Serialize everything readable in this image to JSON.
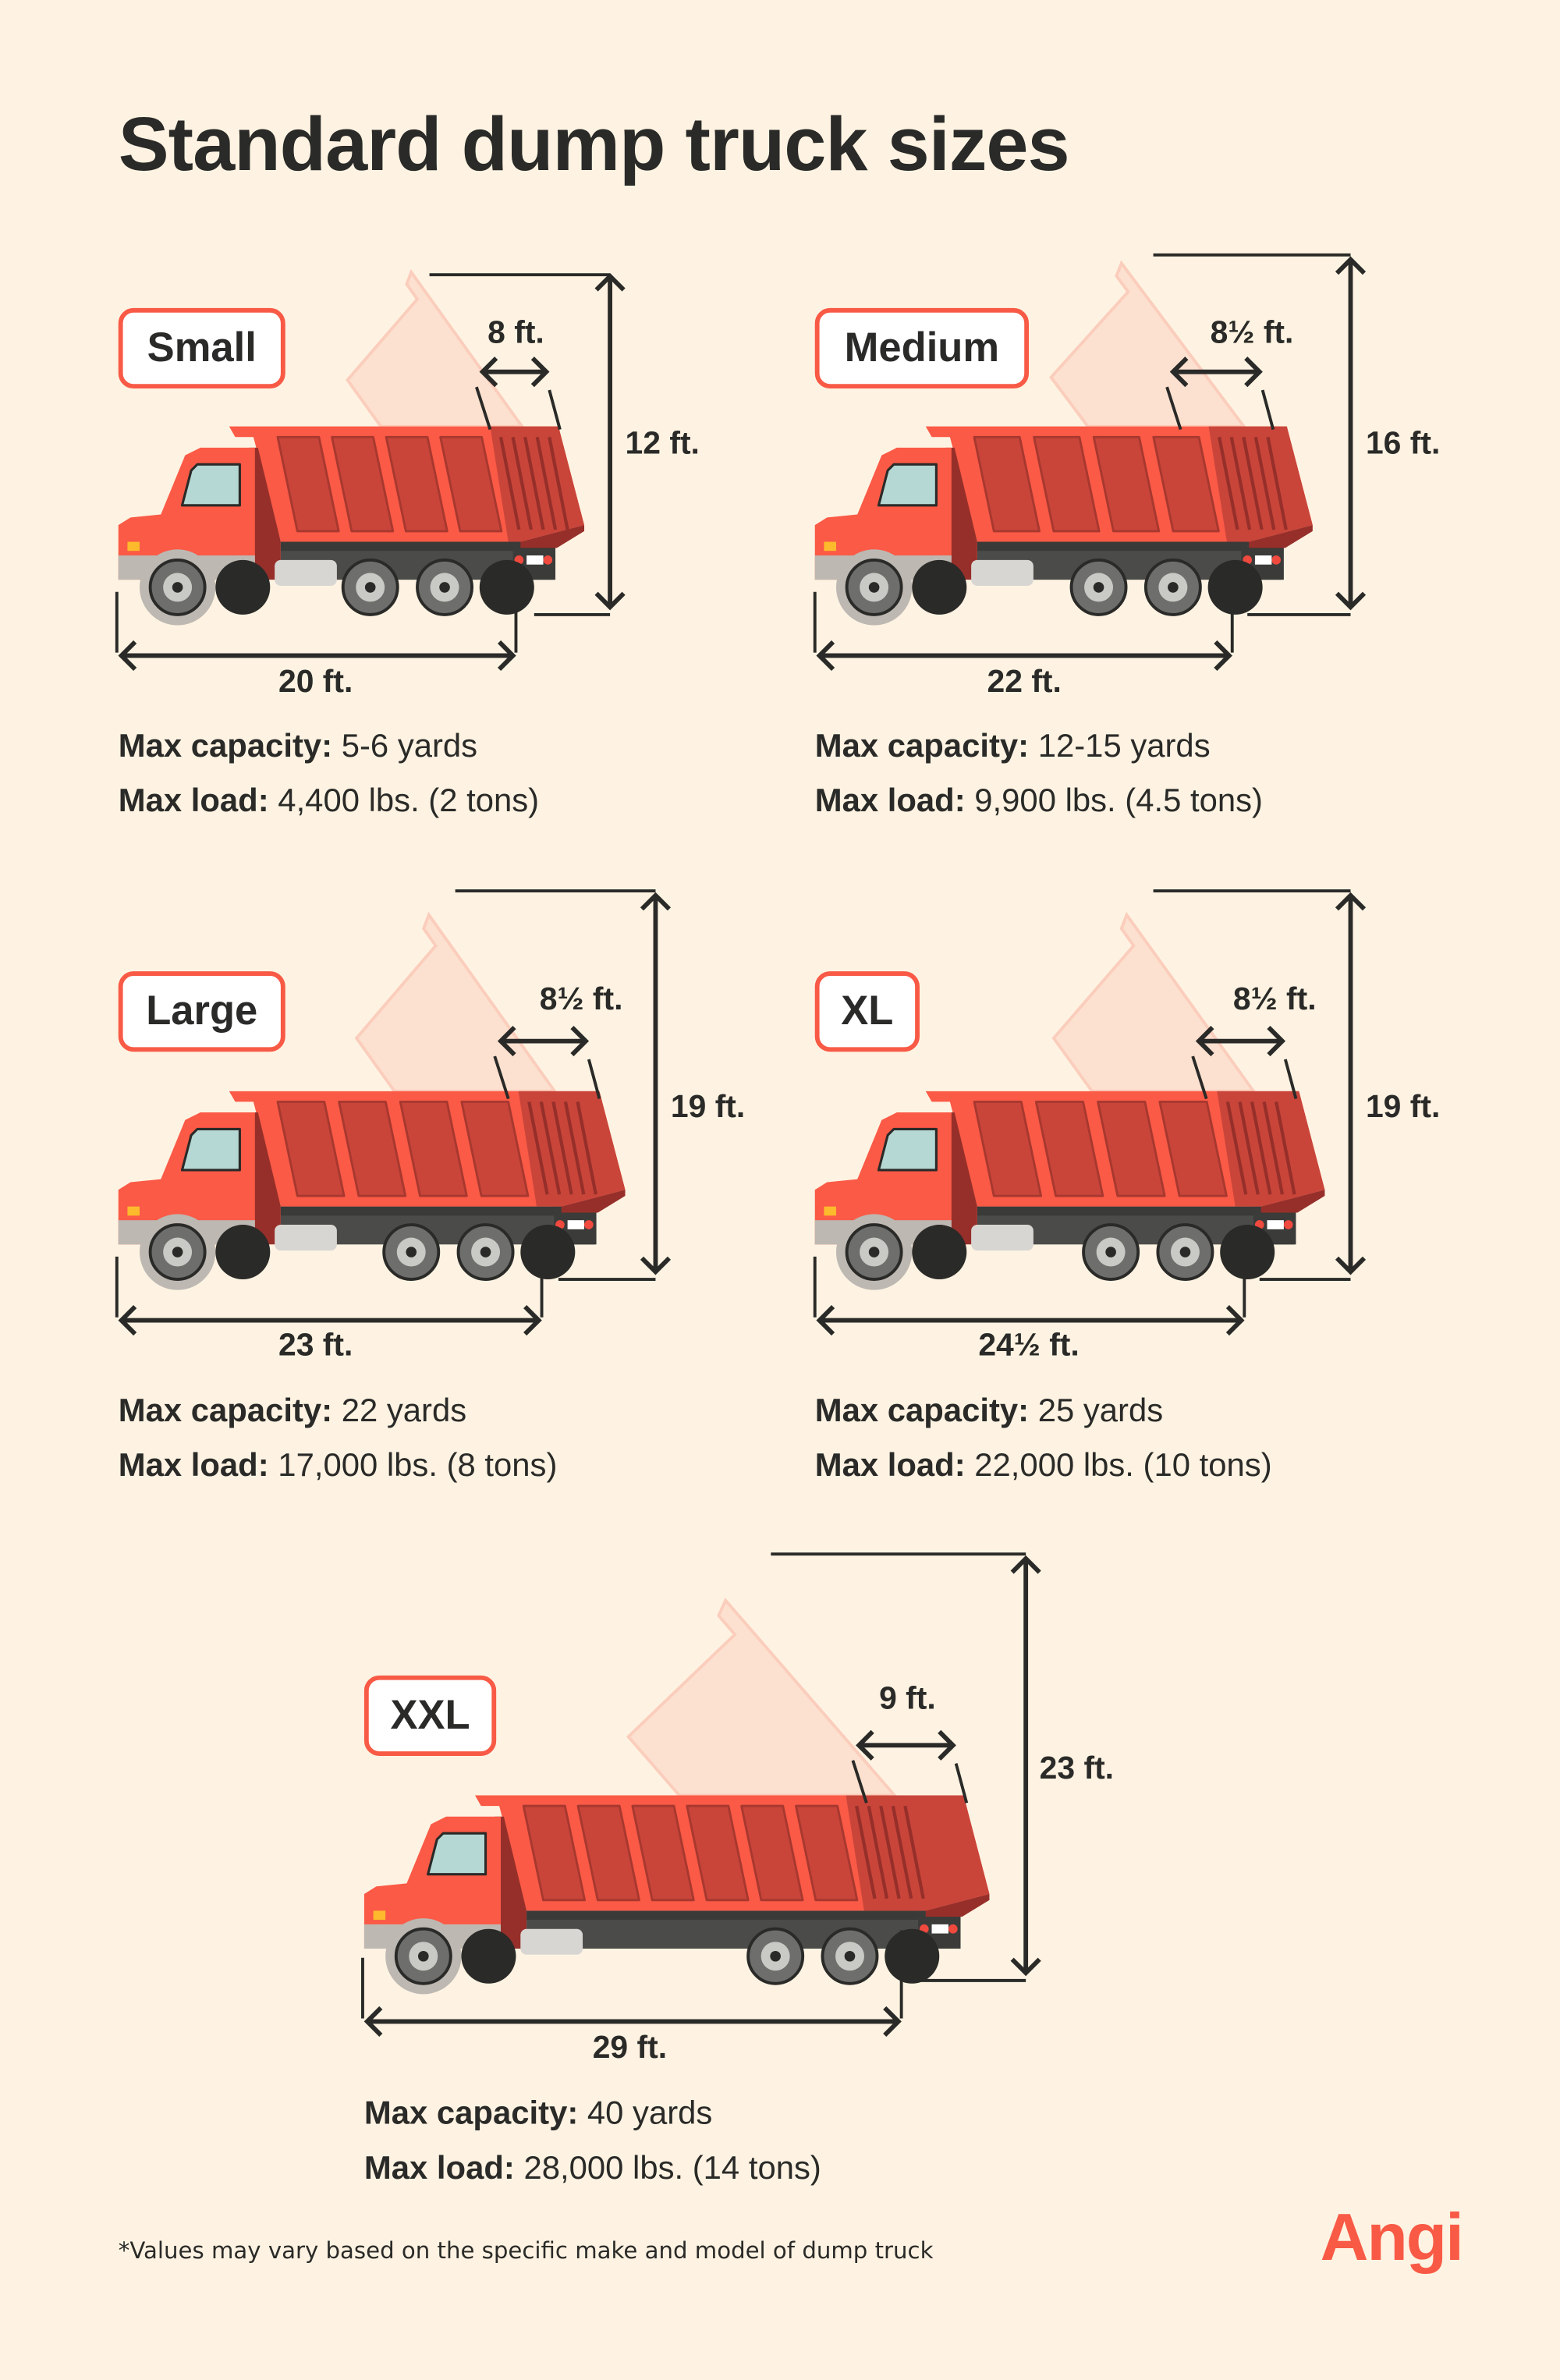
{
  "title": "Standard dump truck sizes",
  "spec_labels": {
    "capacity": "Max capacity:",
    "load": "Max load:"
  },
  "trucks": [
    {
      "label": "Small",
      "length": "20 ft.",
      "height": "12 ft.",
      "bed_width": "8 ft.",
      "capacity": "5-6 yards",
      "load": "4,400 lbs. (2 tons)"
    },
    {
      "label": "Medium",
      "length": "22 ft.",
      "height": "16 ft.",
      "bed_width": "8½ ft.",
      "capacity": "12-15 yards",
      "load": "9,900 lbs. (4.5 tons)"
    },
    {
      "label": "Large",
      "length": "23 ft.",
      "height": "19 ft.",
      "bed_width": "8½ ft.",
      "capacity": "22 yards",
      "load": "17,000 lbs. (8 tons)"
    },
    {
      "label": "XL",
      "length": "24½ ft.",
      "height": "19 ft.",
      "bed_width": "8½ ft.",
      "capacity": "25 yards",
      "load": "22,000 lbs. (10 tons)"
    },
    {
      "label": "XXL",
      "length": "29 ft.",
      "height": "23 ft.",
      "bed_width": "9 ft.",
      "capacity": "40 yards",
      "load": "28,000 lbs. (14 tons)"
    }
  ],
  "footnote": "*Values may vary based on the specific make and model of dump truck",
  "logo": "Angi",
  "colors": {
    "background": "#FEF3E2",
    "accent": "#F85A46",
    "text": "#2A2A28",
    "truck_body": "#FA5A46",
    "truck_panel": "#C9453A"
  }
}
